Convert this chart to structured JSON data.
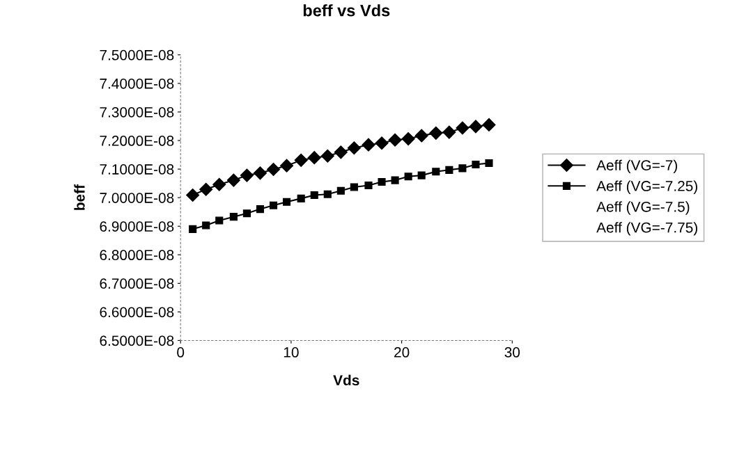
{
  "chart_data": {
    "type": "line",
    "title": "beff vs Vds",
    "xlabel": "Vds",
    "ylabel": "beff",
    "x": [
      1.1,
      2.3,
      3.5,
      4.8,
      6.0,
      7.2,
      8.4,
      9.6,
      10.9,
      12.1,
      13.3,
      14.5,
      15.7,
      17.0,
      18.2,
      19.4,
      20.6,
      21.8,
      23.1,
      24.3,
      25.5,
      26.7,
      27.9
    ],
    "series": [
      {
        "name": "Aeff (VG=-7)",
        "color": "#000000",
        "marker": "diamond",
        "values": [
          7.009e-08,
          7.029e-08,
          7.046e-08,
          7.061e-08,
          7.078e-08,
          7.086e-08,
          7.099e-08,
          7.112e-08,
          7.131e-08,
          7.14e-08,
          7.146e-08,
          7.159e-08,
          7.174e-08,
          7.185e-08,
          7.191e-08,
          7.202e-08,
          7.206e-08,
          7.217e-08,
          7.226e-08,
          7.229e-08,
          7.244e-08,
          7.249e-08,
          7.255e-08
        ]
      },
      {
        "name": "Aeff (VG=-7.25)",
        "color": "#000000",
        "marker": "square",
        "values": [
          6.89e-08,
          6.903e-08,
          6.92e-08,
          6.933e-08,
          6.945e-08,
          6.96e-08,
          6.973e-08,
          6.985e-08,
          6.997e-08,
          7.009e-08,
          7.012e-08,
          7.024e-08,
          7.037e-08,
          7.043e-08,
          7.055e-08,
          7.061e-08,
          7.074e-08,
          7.078e-08,
          7.091e-08,
          7.097e-08,
          7.103e-08,
          7.116e-08,
          7.121e-08
        ]
      },
      {
        "name": "Aeff (VG=-7.5)",
        "color": "#000000",
        "values": [
          null,
          null,
          null,
          null,
          null,
          null,
          null,
          null,
          null,
          null,
          null,
          null,
          null,
          null,
          null,
          null,
          null,
          null,
          null,
          null,
          null,
          null,
          null
        ]
      },
      {
        "name": "Aeff (VG=-7.75)",
        "color": "#000000",
        "values": [
          null,
          null,
          null,
          null,
          null,
          null,
          null,
          null,
          null,
          null,
          null,
          null,
          null,
          null,
          null,
          null,
          null,
          null,
          null,
          null,
          null,
          null,
          null
        ]
      }
    ],
    "xlim": [
      0,
      30
    ],
    "xticks": [
      0,
      10,
      20,
      30
    ],
    "ylim": [
      6.5e-08,
      7.5e-08
    ],
    "yticks": [
      {
        "value": 6.5e-08,
        "label": "6.5000E-08"
      },
      {
        "value": 6.6e-08,
        "label": "6.6000E-08"
      },
      {
        "value": 6.7e-08,
        "label": "6.7000E-08"
      },
      {
        "value": 6.8e-08,
        "label": "6.8000E-08"
      },
      {
        "value": 6.9e-08,
        "label": "6.9000E-08"
      },
      {
        "value": 7e-08,
        "label": "7.0000E-08"
      },
      {
        "value": 7.1e-08,
        "label": "7.1000E-08"
      },
      {
        "value": 7.2e-08,
        "label": "7.2000E-08"
      },
      {
        "value": 7.3e-08,
        "label": "7.3000E-08"
      },
      {
        "value": 7.4e-08,
        "label": "7.4000E-08"
      },
      {
        "value": 7.5e-08,
        "label": "7.5000E-08"
      }
    ],
    "grid": false,
    "legend": "right",
    "line_style": "solid"
  }
}
